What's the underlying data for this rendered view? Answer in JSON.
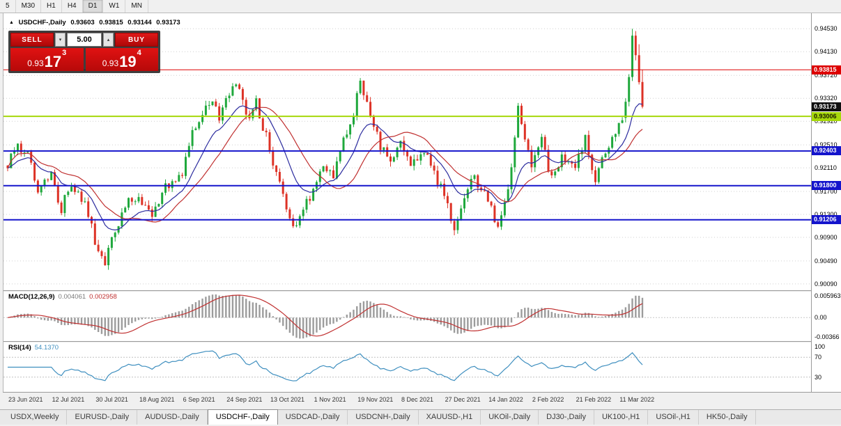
{
  "toolbar": {
    "timeframes": [
      {
        "label": "5",
        "active": false
      },
      {
        "label": "M30",
        "active": false
      },
      {
        "label": "H1",
        "active": false
      },
      {
        "label": "H4",
        "active": false
      },
      {
        "label": "D1",
        "active": true
      },
      {
        "label": "W1",
        "active": false
      },
      {
        "label": "MN",
        "active": false
      }
    ]
  },
  "chart": {
    "header": {
      "collapse_icon": "▲",
      "symbol": "USDCHF-,Daily",
      "open": "0.93603",
      "high": "0.93815",
      "low": "0.93144",
      "close": "0.93173"
    },
    "trade_widget": {
      "sell_label": "SELL",
      "buy_label": "BUY",
      "volume": "5.00",
      "vol_down_icon": "▾",
      "vol_up_icon": "▴",
      "sell_price": {
        "base": "0.93",
        "pips": "17",
        "pt": "3"
      },
      "buy_price": {
        "base": "0.93",
        "pips": "19",
        "pt": "4"
      }
    },
    "price_tags": [
      {
        "text": "0.93815",
        "price": 0.93815,
        "bg": "#dd0000",
        "fg": "#ffffff"
      },
      {
        "text": "0.93173",
        "price": 0.93173,
        "bg": "#101010",
        "fg": "#ffffff"
      },
      {
        "text": "0.93006",
        "price": 0.93006,
        "bg": "#a6d80a",
        "fg": "#1a1a00"
      },
      {
        "text": "0.92403",
        "price": 0.92403,
        "bg": "#1414cc",
        "fg": "#ffffff"
      },
      {
        "text": "0.91800",
        "price": 0.918,
        "bg": "#1414cc",
        "fg": "#ffffff"
      },
      {
        "text": "0.91206",
        "price": 0.91206,
        "bg": "#1414cc",
        "fg": "#ffffff"
      }
    ]
  },
  "macd": {
    "label": "MACD(12,26,9)",
    "value_main": "0.004061",
    "value_signal": "0.002958",
    "axis_max": "0.005963",
    "axis_zero": "0.00",
    "axis_min": "-0.00366"
  },
  "rsi": {
    "label": "RSI(14)",
    "value": "54.1370",
    "axis_labels": [
      "100",
      "70",
      "30"
    ],
    "level_lines": [
      70,
      30
    ]
  },
  "tabs": [
    {
      "label": "USDX,Weekly",
      "active": false
    },
    {
      "label": "EURUSD-,Daily",
      "active": false
    },
    {
      "label": "AUDUSD-,Daily",
      "active": false
    },
    {
      "label": "USDCHF-,Daily",
      "active": true
    },
    {
      "label": "USDCAD-,Daily",
      "active": false
    },
    {
      "label": "USDCNH-,Daily",
      "active": false
    },
    {
      "label": "XAUUSD-,H1",
      "active": false
    },
    {
      "label": "UKOil-,Daily",
      "active": false
    },
    {
      "label": "DJ30-,Daily",
      "active": false
    },
    {
      "label": "UK100-,H1",
      "active": false
    },
    {
      "label": "USOil-,H1",
      "active": false
    },
    {
      "label": "HK50-,Daily",
      "active": false
    }
  ],
  "chart_data": {
    "type": "candlestick",
    "symbol": "USDCHF-",
    "timeframe": "Daily",
    "n_candles": 190,
    "ylim": [
      0.8998,
      0.948
    ],
    "seed": 12,
    "noise": 0.0011,
    "wick": 0.0009,
    "bull_color": "#1fa83c",
    "bear_color": "#dd3226",
    "y_ticks": [
      "0.94530",
      "0.94130",
      "0.93720",
      "0.93320",
      "0.92920",
      "0.92510",
      "0.92110",
      "0.91700",
      "0.91300",
      "0.90900",
      "0.90490",
      "0.90090"
    ],
    "levels": [
      {
        "price": 0.93815,
        "color": "#dd0000",
        "width": 1
      },
      {
        "price": 0.93006,
        "color": "#a6d80a",
        "width": 2
      },
      {
        "price": 0.92403,
        "color": "#1414cc",
        "width": 2
      },
      {
        "price": 0.918,
        "color": "#1414cc",
        "width": 2
      },
      {
        "price": 0.91206,
        "color": "#1414cc",
        "width": 2
      }
    ],
    "price_waypoints": [
      [
        0,
        0.9215
      ],
      [
        3,
        0.9248
      ],
      [
        6,
        0.9228
      ],
      [
        9,
        0.9178
      ],
      [
        13,
        0.9198
      ],
      [
        16,
        0.914
      ],
      [
        19,
        0.9188
      ],
      [
        22,
        0.9162
      ],
      [
        26,
        0.9085
      ],
      [
        29,
        0.9044
      ],
      [
        32,
        0.9098
      ],
      [
        35,
        0.9148
      ],
      [
        39,
        0.9162
      ],
      [
        43,
        0.9132
      ],
      [
        47,
        0.918
      ],
      [
        52,
        0.9206
      ],
      [
        55,
        0.9268
      ],
      [
        58,
        0.9306
      ],
      [
        61,
        0.9332
      ],
      [
        63,
        0.9296
      ],
      [
        66,
        0.9338
      ],
      [
        68,
        0.936
      ],
      [
        71,
        0.93
      ],
      [
        74,
        0.9322
      ],
      [
        77,
        0.9266
      ],
      [
        80,
        0.9206
      ],
      [
        83,
        0.9136
      ],
      [
        86,
        0.9102
      ],
      [
        89,
        0.9146
      ],
      [
        91,
        0.9164
      ],
      [
        94,
        0.9224
      ],
      [
        97,
        0.9196
      ],
      [
        100,
        0.9256
      ],
      [
        103,
        0.9308
      ],
      [
        105,
        0.9366
      ],
      [
        108,
        0.9304
      ],
      [
        111,
        0.9244
      ],
      [
        114,
        0.9222
      ],
      [
        117,
        0.9254
      ],
      [
        120,
        0.9216
      ],
      [
        124,
        0.9244
      ],
      [
        127,
        0.9206
      ],
      [
        130,
        0.9162
      ],
      [
        133,
        0.9112
      ],
      [
        136,
        0.916
      ],
      [
        139,
        0.92
      ],
      [
        143,
        0.915
      ],
      [
        146,
        0.9106
      ],
      [
        149,
        0.9164
      ],
      [
        152,
        0.932
      ],
      [
        154,
        0.9256
      ],
      [
        156,
        0.9222
      ],
      [
        159,
        0.926
      ],
      [
        162,
        0.9192
      ],
      [
        165,
        0.9234
      ],
      [
        169,
        0.9206
      ],
      [
        172,
        0.926
      ],
      [
        175,
        0.9196
      ],
      [
        178,
        0.9232
      ],
      [
        181,
        0.9278
      ],
      [
        183,
        0.9298
      ]
    ],
    "tail_candles": [
      {
        "o": 0.9298,
        "h": 0.9332,
        "l": 0.929,
        "c": 0.9326
      },
      {
        "o": 0.9326,
        "h": 0.9374,
        "l": 0.9318,
        "c": 0.9369
      },
      {
        "o": 0.9369,
        "h": 0.9453,
        "l": 0.9362,
        "c": 0.9441
      },
      {
        "o": 0.9441,
        "h": 0.9449,
        "l": 0.9398,
        "c": 0.9407
      },
      {
        "o": 0.9407,
        "h": 0.9426,
        "l": 0.9356,
        "c": 0.936
      },
      {
        "o": 0.93603,
        "h": 0.93815,
        "l": 0.93144,
        "c": 0.93173
      }
    ],
    "last_ohlc": {
      "open": 0.93603,
      "high": 0.93815,
      "low": 0.93144,
      "close": 0.93173
    },
    "ma": [
      {
        "period": 13,
        "type": "ema",
        "color": "#2b2b9e"
      },
      {
        "period": 21,
        "type": "sma",
        "color": "#c03030"
      }
    ],
    "macd_params": [
      12,
      26,
      9
    ],
    "rsi_period": 14,
    "x_labels": [
      {
        "label": "23 Jun 2021",
        "index": 0
      },
      {
        "label": "12 Jul 2021",
        "index": 13
      },
      {
        "label": "30 Jul 2021",
        "index": 26
      },
      {
        "label": "18 Aug 2021",
        "index": 39
      },
      {
        "label": "6 Sep 2021",
        "index": 52
      },
      {
        "label": "24 Sep 2021",
        "index": 65
      },
      {
        "label": "13 Oct 2021",
        "index": 78
      },
      {
        "label": "1 Nov 2021",
        "index": 91
      },
      {
        "label": "19 Nov 2021",
        "index": 104
      },
      {
        "label": "8 Dec 2021",
        "index": 117
      },
      {
        "label": "27 Dec 2021",
        "index": 130
      },
      {
        "label": "14 Jan 2022",
        "index": 143
      },
      {
        "label": "2 Feb 2022",
        "index": 156
      },
      {
        "label": "21 Feb 2022",
        "index": 169
      },
      {
        "label": "11 Mar 2022",
        "index": 182
      }
    ]
  }
}
